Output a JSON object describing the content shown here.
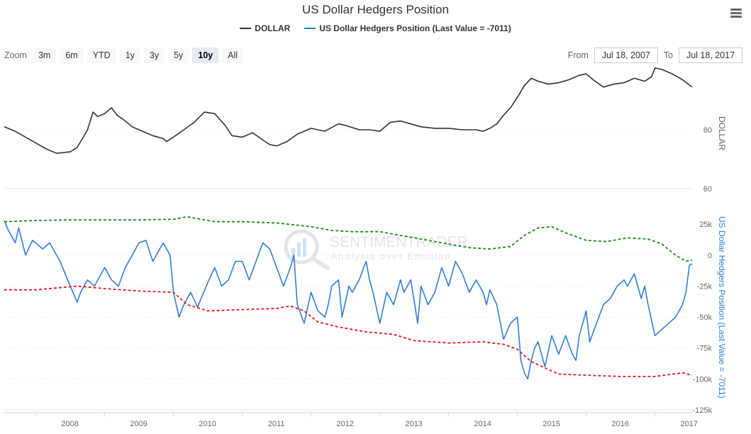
{
  "title": "US Dollar Hedgers Position",
  "legend": [
    {
      "name": "DOLLAR",
      "color": "#333333"
    },
    {
      "name": "US Dollar Hedgers Position (Last Value = -7011)",
      "color": "#2f7ed8"
    }
  ],
  "range_selector": {
    "label": "Zoom",
    "buttons": [
      "3m",
      "6m",
      "YTD",
      "1y",
      "3y",
      "5y",
      "10y",
      "All"
    ],
    "selected": "10y"
  },
  "date_range": {
    "from_label": "From",
    "from": "Jul 18, 2007",
    "to_label": "To",
    "to": "Jul 18, 2017"
  },
  "watermark": {
    "name": "SENTIMENTRADER",
    "tagline": "Analysis over Emotion"
  },
  "colors": {
    "dollar": "#333333",
    "hedgers": "#2f7ed8",
    "upper_band": "#1a8a1a",
    "lower_band": "#e31a1c"
  },
  "chart_data": {
    "type": "line",
    "x_range": [
      2007.54,
      2017.54
    ],
    "x_ticks": [
      "2008",
      "2009",
      "2010",
      "2011",
      "2012",
      "2013",
      "2014",
      "2015",
      "2016",
      "2017"
    ],
    "panes": [
      {
        "name": "DOLLAR",
        "axis_title": "DOLLAR",
        "ylim": [
          60,
          100
        ],
        "y_ticks": [
          "60",
          "80"
        ],
        "series": [
          {
            "name": "DOLLAR",
            "style": "solid",
            "x": [
              2007.54,
              2007.7,
              2007.85,
              2008.0,
              2008.15,
              2008.3,
              2008.5,
              2008.6,
              2008.65,
              2008.75,
              2008.83,
              2008.9,
              2009.0,
              2009.1,
              2009.18,
              2009.3,
              2009.4,
              2009.55,
              2009.7,
              2009.85,
              2009.9,
              2010.0,
              2010.15,
              2010.3,
              2010.45,
              2010.6,
              2010.75,
              2010.85,
              2011.0,
              2011.15,
              2011.3,
              2011.4,
              2011.5,
              2011.65,
              2011.8,
              2011.9,
              2012.0,
              2012.2,
              2012.4,
              2012.5,
              2012.7,
              2012.85,
              2013.0,
              2013.15,
              2013.3,
              2013.45,
              2013.6,
              2013.8,
              2014.0,
              2014.2,
              2014.4,
              2014.5,
              2014.6,
              2014.7,
              2014.8,
              2014.9,
              2015.0,
              2015.1,
              2015.2,
              2015.3,
              2015.45,
              2015.6,
              2015.75,
              2015.9,
              2016.0,
              2016.1,
              2016.25,
              2016.4,
              2016.55,
              2016.7,
              2016.85,
              2016.95,
              2017.0,
              2017.1,
              2017.25,
              2017.4,
              2017.54
            ],
            "y": [
              81.0,
              79.5,
              77.5,
              75.5,
              73.5,
              72.0,
              72.5,
              74.0,
              76.0,
              80.0,
              86.0,
              84.5,
              85.5,
              87.5,
              85.0,
              83.0,
              81.0,
              79.5,
              78.0,
              77.0,
              76.0,
              77.5,
              80.0,
              82.5,
              86.0,
              85.5,
              81.5,
              78.0,
              77.5,
              79.0,
              76.5,
              75.0,
              74.5,
              76.0,
              78.5,
              79.5,
              80.5,
              79.5,
              82.0,
              81.5,
              80.0,
              80.0,
              79.5,
              82.5,
              83.0,
              82.0,
              81.0,
              80.5,
              80.5,
              80.0,
              80.0,
              79.5,
              80.5,
              82.0,
              85.0,
              87.5,
              91.0,
              95.0,
              97.5,
              96.5,
              95.5,
              96.0,
              97.0,
              98.5,
              99.0,
              97.0,
              94.5,
              95.5,
              96.0,
              97.5,
              96.5,
              98.0,
              101.0,
              100.5,
              99.0,
              97.0,
              94.5
            ]
          }
        ]
      },
      {
        "name": "US Dollar Hedgers Position (Last Value = -7011)",
        "axis_title": "US Dollar Hedgers Position (Last Value = -7011)",
        "ylim": [
          -125000,
          40000
        ],
        "y_ticks": [
          "25k",
          "0",
          "-25k",
          "-50k",
          "-75k",
          "-100k",
          "-125k"
        ],
        "series": [
          {
            "name": "US Dollar Hedgers Position (Last Value = -7011)",
            "style": "solid",
            "x": [
              2007.54,
              2007.6,
              2007.7,
              2007.75,
              2007.85,
              2007.95,
              2008.1,
              2008.2,
              2008.35,
              2008.5,
              2008.6,
              2008.65,
              2008.75,
              2008.85,
              2008.95,
              2009.0,
              2009.1,
              2009.2,
              2009.3,
              2009.4,
              2009.5,
              2009.6,
              2009.7,
              2009.8,
              2009.85,
              2009.95,
              2010.0,
              2010.08,
              2010.15,
              2010.25,
              2010.35,
              2010.5,
              2010.6,
              2010.7,
              2010.8,
              2010.9,
              2011.0,
              2011.1,
              2011.2,
              2011.3,
              2011.4,
              2011.5,
              2011.6,
              2011.7,
              2011.75,
              2011.8,
              2011.9,
              2012.0,
              2012.1,
              2012.2,
              2012.25,
              2012.3,
              2012.4,
              2012.45,
              2012.55,
              2012.6,
              2012.7,
              2012.8,
              2012.85,
              2012.9,
              2013.0,
              2013.1,
              2013.2,
              2013.3,
              2013.35,
              2013.45,
              2013.55,
              2013.6,
              2013.7,
              2013.8,
              2013.9,
              2014.0,
              2014.1,
              2014.2,
              2014.3,
              2014.4,
              2014.5,
              2014.55,
              2014.6,
              2014.7,
              2014.8,
              2014.9,
              2015.0,
              2015.05,
              2015.1,
              2015.15,
              2015.2,
              2015.25,
              2015.3,
              2015.4,
              2015.5,
              2015.6,
              2015.7,
              2015.8,
              2015.85,
              2015.9,
              2016.0,
              2016.05,
              2016.15,
              2016.25,
              2016.35,
              2016.45,
              2016.55,
              2016.6,
              2016.7,
              2016.8,
              2016.85,
              2016.9,
              2017.0,
              2017.1,
              2017.2,
              2017.3,
              2017.4,
              2017.45,
              2017.5,
              2017.54
            ],
            "y": [
              28000,
              20000,
              10000,
              22000,
              0,
              12000,
              5000,
              10000,
              -5000,
              -25000,
              -38000,
              -30000,
              -20000,
              -25000,
              -15000,
              -10000,
              -20000,
              -25000,
              -10000,
              0,
              10000,
              12000,
              -5000,
              5000,
              10000,
              0,
              -30000,
              -50000,
              -40000,
              -30000,
              -42000,
              -22000,
              -10000,
              -25000,
              -20000,
              -5000,
              -5000,
              -20000,
              -5000,
              10000,
              5000,
              -10000,
              -25000,
              -10000,
              0,
              -40000,
              -55000,
              -30000,
              -45000,
              -50000,
              -40000,
              -25000,
              -20000,
              -50000,
              -25000,
              -30000,
              -20000,
              -5000,
              -20000,
              -30000,
              -55000,
              -30000,
              -40000,
              -20000,
              -30000,
              -20000,
              -55000,
              -25000,
              -40000,
              -30000,
              -10000,
              -25000,
              -5000,
              -15000,
              -30000,
              -20000,
              -30000,
              -40000,
              -28000,
              -40000,
              -68000,
              -55000,
              -50000,
              -85000,
              -95000,
              -100000,
              -85000,
              -75000,
              -70000,
              -90000,
              -65000,
              -80000,
              -65000,
              -80000,
              -85000,
              -65000,
              -45000,
              -70000,
              -55000,
              -40000,
              -35000,
              -25000,
              -20000,
              -25000,
              -15000,
              -35000,
              -25000,
              -40000,
              -65000,
              -60000,
              -55000,
              -50000,
              -40000,
              -30000,
              -8000,
              -7011
            ]
          },
          {
            "name": "Upper band",
            "style": "dashed",
            "x": [
              2007.54,
              2008.0,
              2008.5,
              2009.0,
              2009.5,
              2010.0,
              2010.2,
              2010.4,
              2010.6,
              2011.0,
              2011.5,
              2012.0,
              2012.3,
              2012.6,
              2013.0,
              2013.5,
              2014.0,
              2014.3,
              2014.6,
              2014.9,
              2015.1,
              2015.3,
              2015.5,
              2015.7,
              2016.0,
              2016.3,
              2016.6,
              2016.9,
              2017.1,
              2017.3,
              2017.45,
              2017.54
            ],
            "y": [
              27000,
              28000,
              28500,
              28500,
              28500,
              29000,
              31000,
              29000,
              27000,
              27000,
              26000,
              23000,
              20000,
              19000,
              19000,
              14000,
              9000,
              6000,
              5000,
              7000,
              16000,
              22000,
              23000,
              18000,
              12000,
              11000,
              14000,
              13000,
              9000,
              0,
              -5000,
              -4000
            ]
          },
          {
            "name": "Lower band",
            "style": "dashed",
            "x": [
              2007.54,
              2008.0,
              2008.4,
              2008.6,
              2009.0,
              2009.5,
              2010.0,
              2010.2,
              2010.5,
              2011.0,
              2011.5,
              2011.7,
              2011.9,
              2012.1,
              2012.4,
              2012.8,
              2013.2,
              2013.5,
              2014.0,
              2014.5,
              2014.8,
              2015.0,
              2015.2,
              2015.4,
              2015.6,
              2016.0,
              2016.5,
              2017.0,
              2017.4,
              2017.54
            ],
            "y": [
              -28000,
              -28000,
              -26000,
              -25000,
              -27000,
              -29000,
              -30000,
              -40000,
              -45000,
              -44000,
              -43000,
              -41000,
              -45000,
              -54000,
              -58000,
              -62000,
              -64000,
              -69000,
              -71000,
              -70000,
              -72000,
              -76000,
              -86000,
              -91000,
              -96000,
              -97000,
              -98000,
              -98000,
              -95000,
              -97000
            ]
          }
        ]
      }
    ]
  }
}
